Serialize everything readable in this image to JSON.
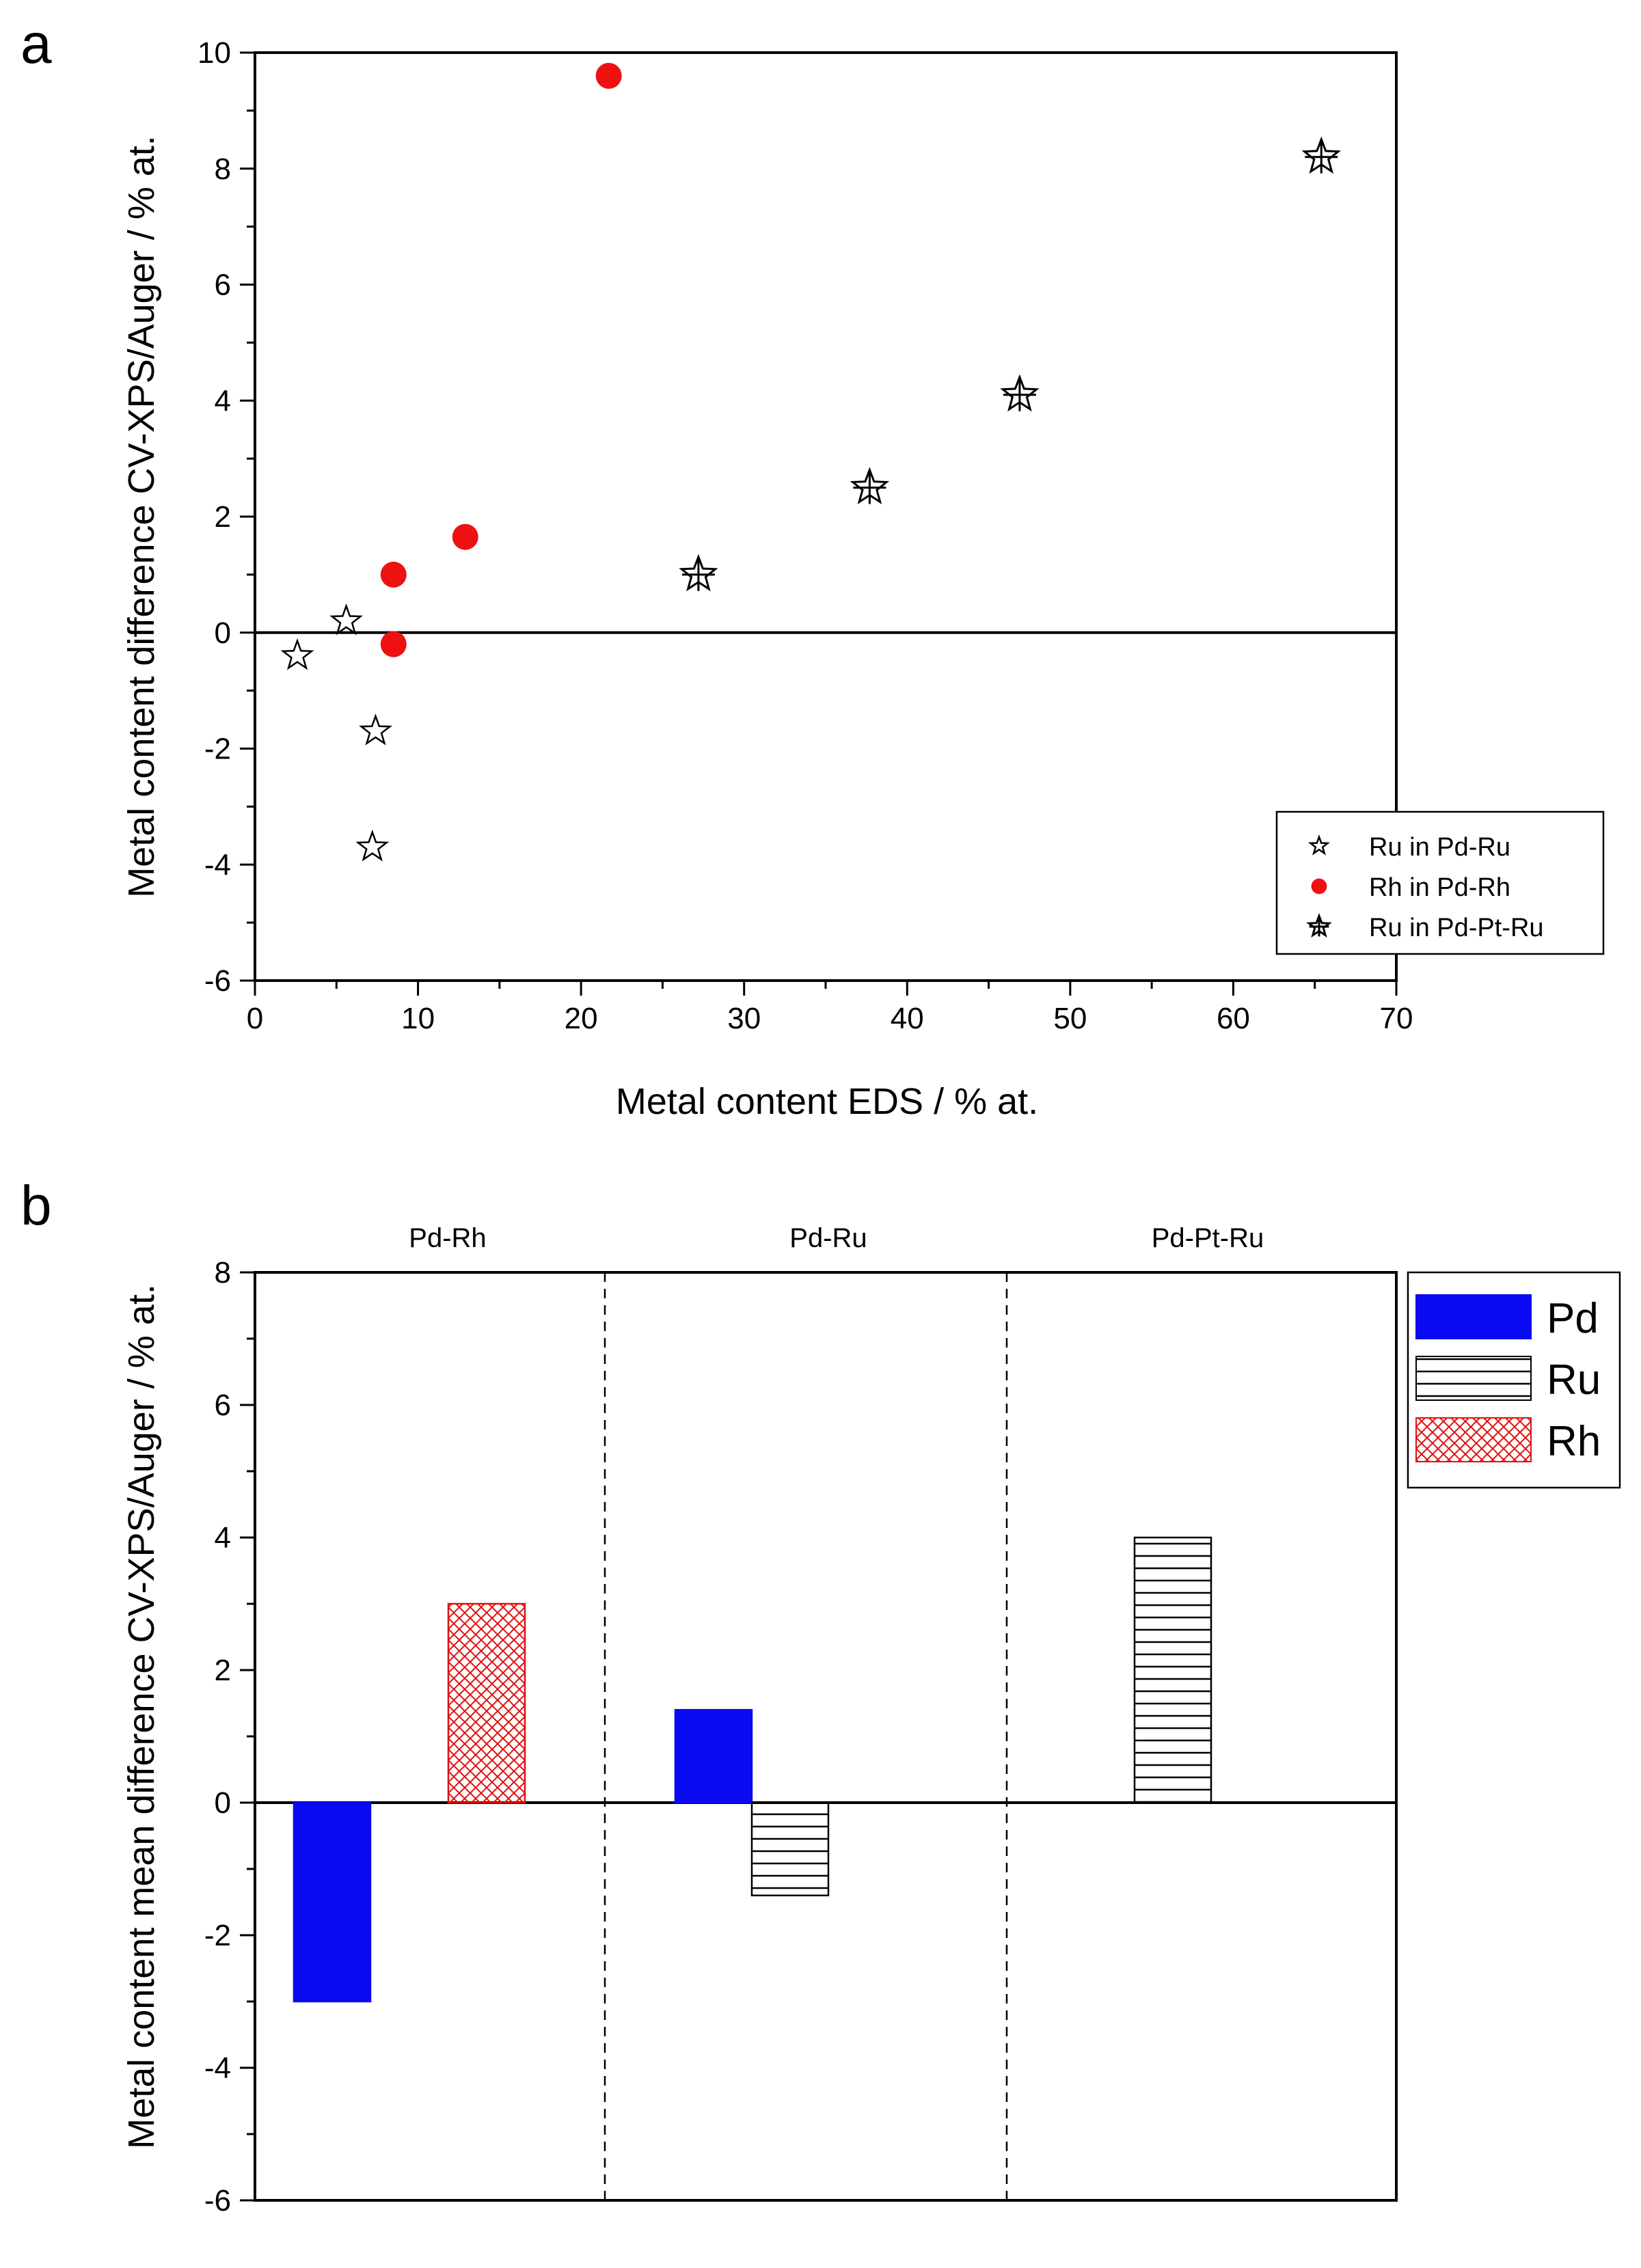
{
  "chart_data": [
    {
      "type": "scatter",
      "panel_label": "a",
      "xlabel": "Metal content EDS / % at.",
      "ylabel": "Metal content difference CV-XPS/Auger / % at.",
      "xlim": [
        0,
        70
      ],
      "ylim": [
        -6,
        10
      ],
      "xticks": [
        0,
        10,
        20,
        30,
        40,
        50,
        60,
        70
      ],
      "yticks": [
        -6,
        -4,
        -2,
        0,
        2,
        4,
        6,
        8,
        10
      ],
      "xtick_labels": [
        "0",
        "10",
        "20",
        "30",
        "40",
        "50",
        "60",
        "70"
      ],
      "ytick_labels": [
        "-6",
        "-4",
        "-2",
        "0",
        "2",
        "4",
        "6",
        "8",
        "10"
      ],
      "reference_line_y": 0,
      "legend_position": "bottom-right",
      "series": [
        {
          "name": "Ru in Pd-Ru",
          "marker": "open-star",
          "color": "#000000",
          "x": [
            2.6,
            5.6,
            7.4,
            7.2
          ],
          "y": [
            -0.4,
            0.2,
            -1.7,
            -3.7
          ]
        },
        {
          "name": "Rh in Pd-Rh",
          "marker": "filled-circle",
          "color": "#ee1111",
          "x": [
            8.5,
            8.5,
            12.9,
            21.7
          ],
          "y": [
            1.0,
            -0.2,
            1.65,
            9.6
          ]
        },
        {
          "name": "Ru in Pd-Pt-Ru",
          "marker": "crossed-star",
          "color": "#000000",
          "x": [
            27.2,
            37.7,
            46.9,
            65.4
          ],
          "y": [
            1.0,
            2.5,
            4.1,
            8.2
          ]
        }
      ]
    },
    {
      "type": "bar",
      "panel_label": "b",
      "ylabel": "Metal content mean difference CV-XPS/Auger / % at.",
      "ylim": [
        -6,
        8
      ],
      "yticks": [
        -6,
        -4,
        -2,
        0,
        2,
        4,
        6,
        8
      ],
      "ytick_labels": [
        "-6",
        "-4",
        "-2",
        "0",
        "2",
        "4",
        "6",
        "8"
      ],
      "reference_line_y": 0,
      "groups": [
        "Pd-Rh",
        "Pd-Ru",
        "Pd-Pt-Ru"
      ],
      "legend_position": "top-right",
      "series": [
        {
          "name": "Pd",
          "color": "#0a0af0",
          "pattern": "solid",
          "values": [
            -3.0,
            1.4,
            null
          ]
        },
        {
          "name": "Ru",
          "color": "#000000",
          "pattern": "horizontal-lines",
          "values": [
            null,
            -1.4,
            4.0
          ]
        },
        {
          "name": "Rh",
          "color": "#e01010",
          "pattern": "crosshatch",
          "values": [
            3.0,
            null,
            null
          ]
        }
      ]
    }
  ]
}
